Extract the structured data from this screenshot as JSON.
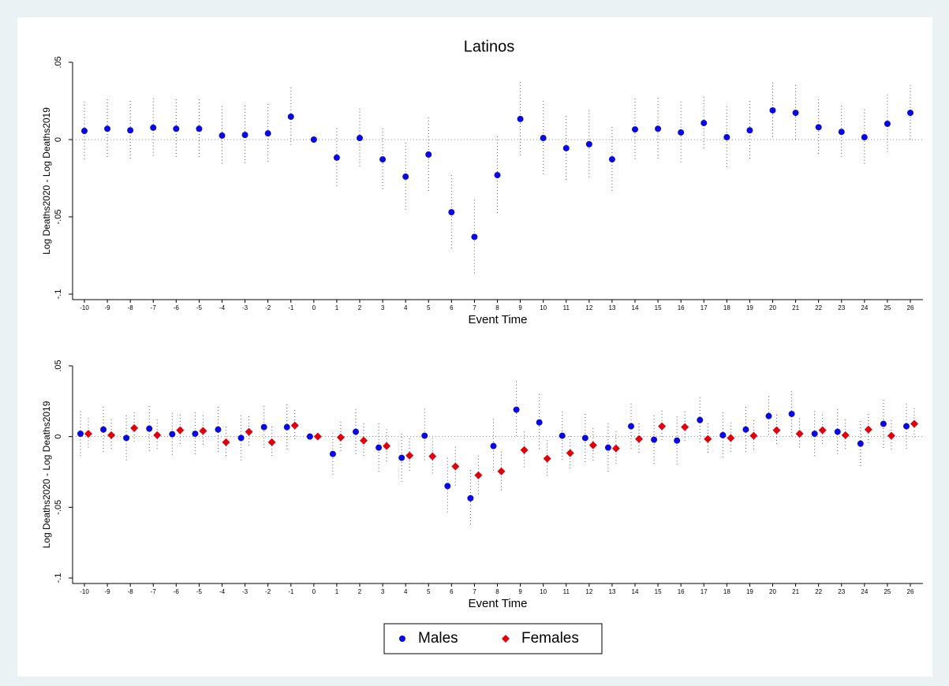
{
  "chart_data": [
    {
      "type": "scatter",
      "title": "Latinos",
      "xlabel": "Event Time",
      "ylabel": "Log Deaths2020 - Log Deaths2019",
      "categories": [
        "-10",
        "-9",
        "-8",
        "-7",
        "-6",
        "-5",
        "-4",
        "-3",
        "-2",
        "-1",
        "0",
        "1",
        "2",
        "3",
        "4",
        "5",
        "6",
        "7",
        "8",
        "9",
        "10",
        "11",
        "12",
        "13",
        "14",
        "15",
        "16",
        "17",
        "18",
        "19",
        "20",
        "21",
        "22",
        "23",
        "24",
        "25",
        "26"
      ],
      "series": [
        {
          "color": "#0a0ae0",
          "marker": "circle",
          "values": [
            0.0056,
            0.007,
            0.006,
            0.0077,
            0.007,
            0.007,
            0.0026,
            0.003,
            0.004,
            0.0148,
            0,
            -0.0117,
            0.001,
            -0.0128,
            -0.024,
            -0.0097,
            -0.047,
            -0.063,
            -0.023,
            0.0133,
            0.001,
            -0.0056,
            -0.003,
            -0.0128,
            0.0066,
            0.007,
            0.0046,
            0.0107,
            0.0015,
            0.006,
            0.0189,
            0.0173,
            0.008,
            0.005,
            0.0015,
            0.0102,
            0.0173
          ],
          "errors": [
            0.019,
            0.019,
            0.019,
            0.019,
            0.019,
            0.019,
            0.019,
            0.019,
            0.019,
            0.019,
            0,
            0.019,
            0.019,
            0.02,
            0.022,
            0.024,
            0.024,
            0.024,
            0.025,
            0.024,
            0.024,
            0.021,
            0.022,
            0.021,
            0.02,
            0.02,
            0.02,
            0.017,
            0.02,
            0.019,
            0.018,
            0.018,
            0.018,
            0.017,
            0.018,
            0.019,
            0.018
          ]
        }
      ],
      "ylim": [
        -0.1,
        0.05
      ],
      "yticks": [
        {
          "value": 0.05,
          "label": ".05"
        },
        0,
        {
          "value": -0.05,
          "label": "-.05"
        },
        {
          "value": -0.1,
          "label": "-.1"
        }
      ]
    },
    {
      "type": "scatter",
      "xlabel": "Event Time",
      "ylabel": "Log Deaths2020 - Log Deaths2019",
      "categories": [
        "-10",
        "-9",
        "-8",
        "-7",
        "-6",
        "-5",
        "-4",
        "-3",
        "-2",
        "-1",
        "0",
        "1",
        "2",
        "3",
        "4",
        "5",
        "6",
        "7",
        "8",
        "9",
        "10",
        "11",
        "12",
        "13",
        "14",
        "15",
        "16",
        "17",
        "18",
        "19",
        "20",
        "21",
        "22",
        "23",
        "24",
        "25",
        "26"
      ],
      "series": [
        {
          "name": "Males",
          "color": "#0a0ae0",
          "marker": "circle",
          "values": [
            0.002,
            0.005,
            -0.001,
            0.0056,
            0.0017,
            0.002,
            0.005,
            -0.001,
            0.0067,
            0.0067,
            0,
            -0.0123,
            0.0034,
            -0.0078,
            -0.015,
            0.0006,
            -0.035,
            -0.0436,
            -0.0067,
            0.019,
            0.01,
            0.0006,
            -0.001,
            -0.0078,
            0.0073,
            -0.0022,
            -0.0028,
            0.0117,
            0.001,
            0.005,
            0.0145,
            0.016,
            0.002,
            0.0034,
            -0.005,
            0.009,
            0.0073
          ],
          "errors": [
            0.016,
            0.016,
            0.016,
            0.016,
            0.015,
            0.015,
            0.016,
            0.016,
            0.015,
            0.016,
            0,
            0.015,
            0.016,
            0.017,
            0.017,
            0.019,
            0.02,
            0.02,
            0.019,
            0.02,
            0.02,
            0.017,
            0.017,
            0.017,
            0.016,
            0.017,
            0.017,
            0.016,
            0.016,
            0.016,
            0.014,
            0.016,
            0.016,
            0.016,
            0.016,
            0.017,
            0.016
          ]
        },
        {
          "name": "Females",
          "color": "#e0000b",
          "marker": "diamond",
          "values": [
            0.002,
            0.001,
            0.006,
            0.001,
            0.0045,
            0.004,
            -0.004,
            0.0034,
            -0.004,
            0.0078,
            0,
            -0.0006,
            -0.0028,
            -0.0067,
            -0.0134,
            -0.014,
            -0.0212,
            -0.0274,
            -0.0246,
            -0.0095,
            -0.0156,
            -0.0117,
            -0.0061,
            -0.0084,
            -0.0017,
            0.0073,
            0.0067,
            -0.0017,
            -0.001,
            0.0006,
            0.0045,
            0.002,
            0.0045,
            0.001,
            0.005,
            0.0006,
            0.009
          ],
          "errors": [
            0.011,
            0.011,
            0.011,
            0.011,
            0.011,
            0.011,
            0.011,
            0.011,
            0.011,
            0.011,
            0,
            0.011,
            0.012,
            0.012,
            0.012,
            0.013,
            0.014,
            0.014,
            0.014,
            0.013,
            0.013,
            0.012,
            0.012,
            0.012,
            0.011,
            0.011,
            0.011,
            0.011,
            0.011,
            0.011,
            0.011,
            0.011,
            0.011,
            0.011,
            0.011,
            0.011,
            0.011
          ]
        }
      ],
      "ylim": [
        -0.1,
        0.05
      ],
      "yticks": [
        {
          "value": 0.05,
          "label": ".05"
        },
        0,
        {
          "value": -0.05,
          "label": "-.05"
        },
        {
          "value": -0.1,
          "label": "-.1"
        }
      ]
    }
  ]
}
